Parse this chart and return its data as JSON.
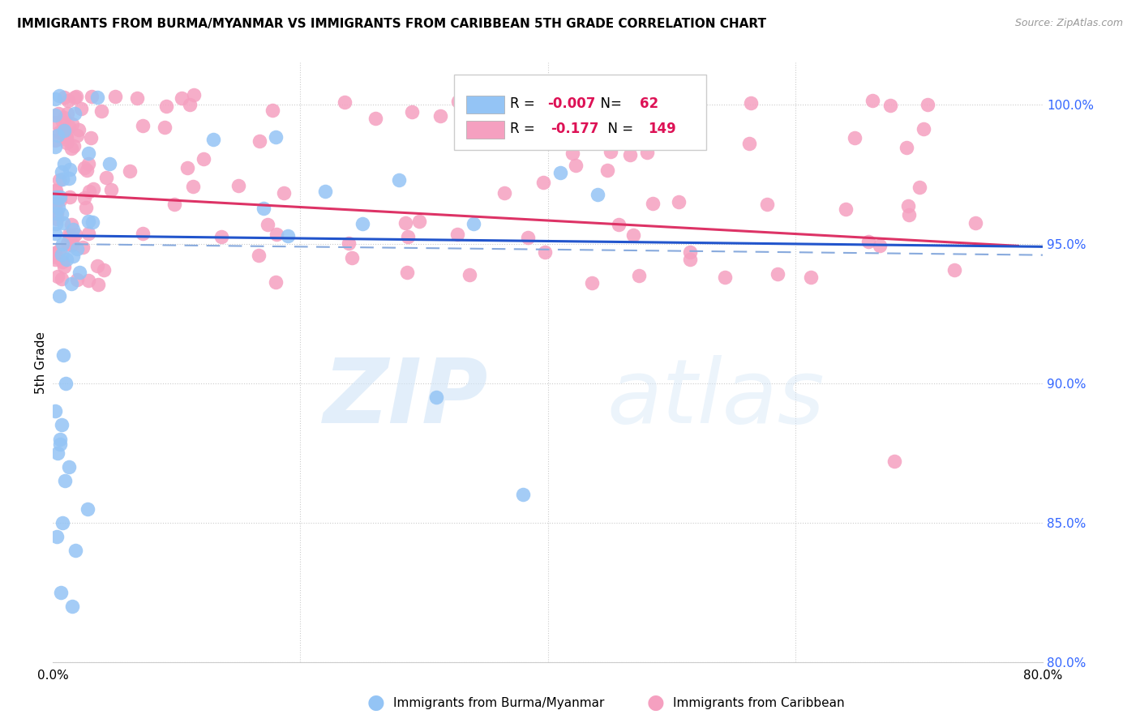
{
  "title": "IMMIGRANTS FROM BURMA/MYANMAR VS IMMIGRANTS FROM CARIBBEAN 5TH GRADE CORRELATION CHART",
  "source": "Source: ZipAtlas.com",
  "ylabel": "5th Grade",
  "blue_R": "-0.007",
  "blue_N": "62",
  "pink_R": "-0.177",
  "pink_N": "149",
  "blue_color": "#94C4F5",
  "pink_color": "#F5A0C0",
  "blue_line_color": "#2255CC",
  "pink_line_color": "#DD3366",
  "legend_label_blue": "Immigrants from Burma/Myanmar",
  "legend_label_pink": "Immigrants from Caribbean",
  "xlim": [
    0.0,
    0.8
  ],
  "ylim": [
    80.0,
    101.5
  ],
  "y_ticks": [
    80.0,
    85.0,
    90.0,
    95.0,
    100.0
  ],
  "x_tick_positions": [
    0.0,
    0.2,
    0.4,
    0.6,
    0.8
  ],
  "x_tick_labels": [
    "0.0%",
    "",
    "",
    "",
    "80.0%"
  ],
  "background_color": "#FFFFFF",
  "grid_color": "#CCCCCC"
}
